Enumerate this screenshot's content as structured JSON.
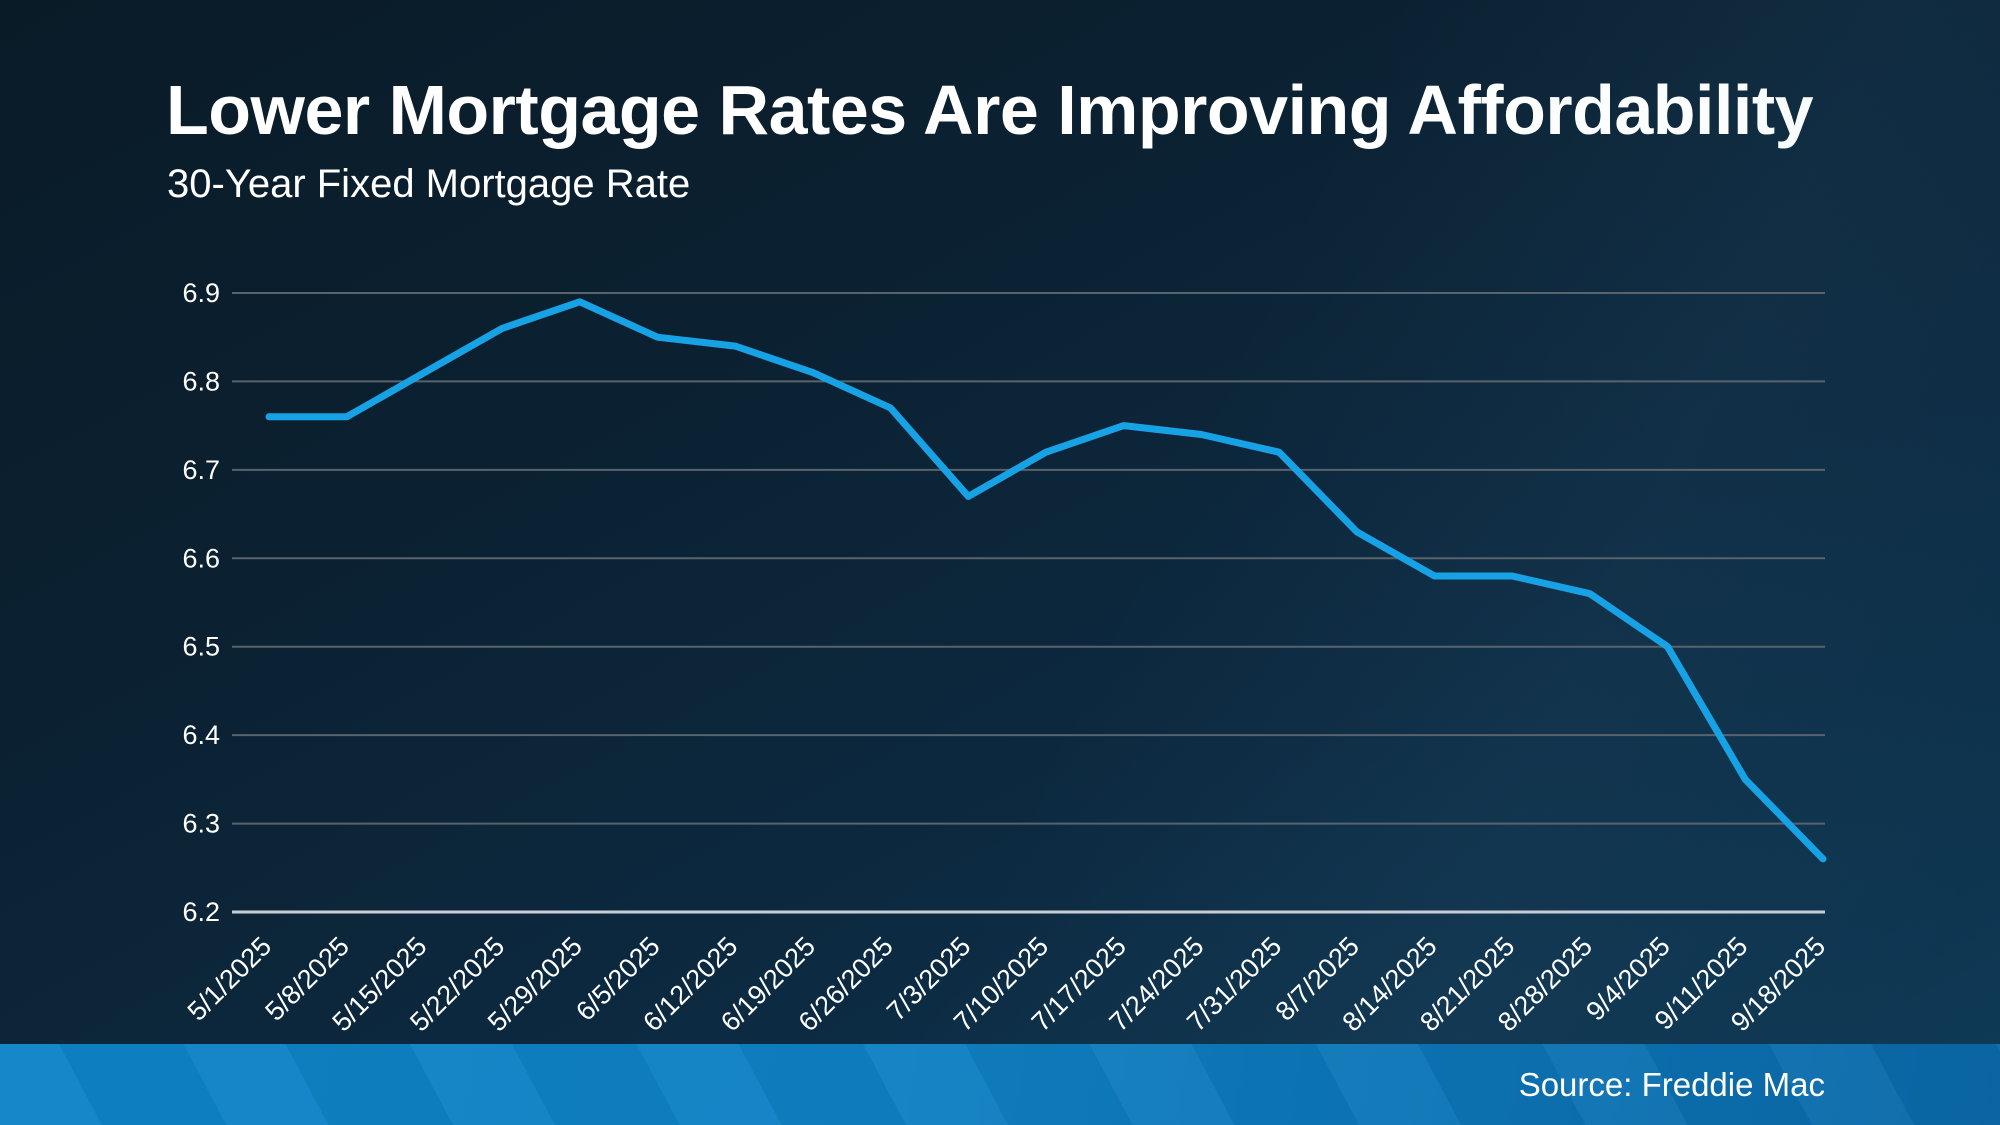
{
  "header": {
    "title": "Lower Mortgage Rates Are Improving Affordability",
    "subtitle": "30-Year Fixed Mortgage Rate"
  },
  "footer": {
    "source": "Source: Freddie Mac"
  },
  "chart_data": {
    "type": "line",
    "title": "Lower Mortgage Rates Are Improving Affordability",
    "subtitle": "30-Year Fixed Mortgage Rate",
    "series_name": "30-Year Fixed Mortgage Rate",
    "categories": [
      "5/1/2025",
      "5/8/2025",
      "5/15/2025",
      "5/22/2025",
      "5/29/2025",
      "6/5/2025",
      "6/12/2025",
      "6/19/2025",
      "6/26/2025",
      "7/3/2025",
      "7/10/2025",
      "7/17/2025",
      "7/24/2025",
      "7/31/2025",
      "8/7/2025",
      "8/14/2025",
      "8/21/2025",
      "8/28/2025",
      "9/4/2025",
      "9/11/2025",
      "9/18/2025"
    ],
    "values": [
      6.76,
      6.76,
      6.81,
      6.86,
      6.89,
      6.85,
      6.84,
      6.81,
      6.77,
      6.67,
      6.72,
      6.75,
      6.74,
      6.72,
      6.63,
      6.58,
      6.58,
      6.56,
      6.5,
      6.35,
      6.26
    ],
    "ylim": [
      6.2,
      6.9
    ],
    "yticks": [
      6.9,
      6.8,
      6.7,
      6.6,
      6.5,
      6.4,
      6.3,
      6.2
    ],
    "grid": true,
    "legend": "none",
    "line_color": "#18a2e6",
    "source": "Source: Freddie Mac"
  },
  "colors": {
    "background_top": "#0a1b28",
    "background_bottom": "#0f3c58",
    "line": "#18a2e6",
    "gridline": "#59636c",
    "axis": "#c9ced4",
    "text": "#ffffff",
    "footer_bar_left": "#0d83c7",
    "footer_bar_right": "#0a68a7"
  }
}
